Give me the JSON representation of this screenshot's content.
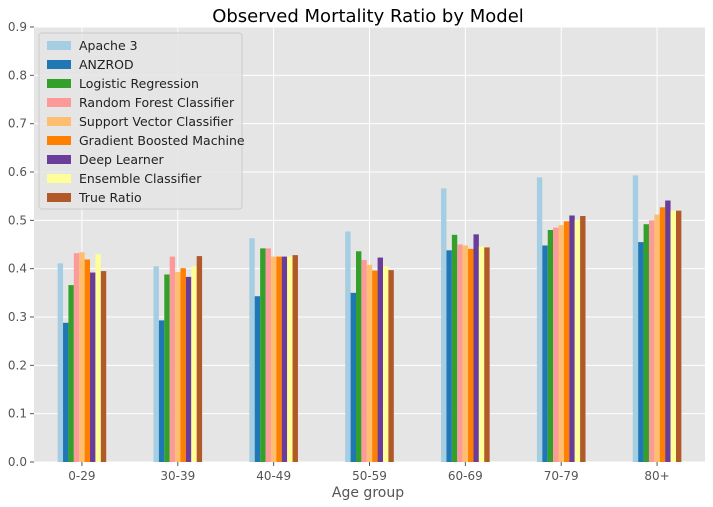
{
  "chart_data": {
    "type": "bar",
    "title": "Observed Mortality Ratio by Model",
    "xlabel": "Age group",
    "ylabel": "",
    "ylim": [
      0,
      0.9
    ],
    "yticks": [
      "0.0",
      "0.1",
      "0.2",
      "0.3",
      "0.4",
      "0.5",
      "0.6",
      "0.7",
      "0.8",
      "0.9"
    ],
    "grid": true,
    "legend_position": "top-left",
    "categories": [
      "0-29",
      "30-39",
      "40-49",
      "50-59",
      "60-69",
      "70-79",
      "80+"
    ],
    "series": [
      {
        "name": "Apache 3",
        "color": "#a6cee3",
        "values": [
          0.411,
          0.405,
          0.463,
          0.477,
          0.566,
          0.589,
          0.593
        ]
      },
      {
        "name": "ANZROD",
        "color": "#1f78b4",
        "values": [
          0.288,
          0.293,
          0.343,
          0.35,
          0.438,
          0.448,
          0.455
        ]
      },
      {
        "name": "Logistic Regression",
        "color": "#33a02c",
        "values": [
          0.366,
          0.388,
          0.442,
          0.436,
          0.47,
          0.48,
          0.492
        ]
      },
      {
        "name": "Random Forest Classifier",
        "color": "#fb9a99",
        "values": [
          0.432,
          0.425,
          0.442,
          0.418,
          0.45,
          0.485,
          0.5
        ]
      },
      {
        "name": "Support Vector Classifier",
        "color": "#fdbf6f",
        "values": [
          0.434,
          0.393,
          0.425,
          0.408,
          0.448,
          0.49,
          0.512
        ]
      },
      {
        "name": "Gradient Boosted Machine",
        "color": "#ff7f00",
        "values": [
          0.419,
          0.401,
          0.425,
          0.396,
          0.441,
          0.498,
          0.527
        ]
      },
      {
        "name": "Deep Learner",
        "color": "#6a3d9a",
        "values": [
          0.392,
          0.383,
          0.425,
          0.423,
          0.471,
          0.51,
          0.541
        ]
      },
      {
        "name": "Ensemble Classifier",
        "color": "#ffff99",
        "values": [
          0.43,
          0.405,
          0.425,
          0.405,
          0.446,
          0.5,
          0.52
        ]
      },
      {
        "name": "True Ratio",
        "color": "#b15928",
        "values": [
          0.395,
          0.426,
          0.428,
          0.397,
          0.444,
          0.509,
          0.52
        ]
      }
    ]
  }
}
